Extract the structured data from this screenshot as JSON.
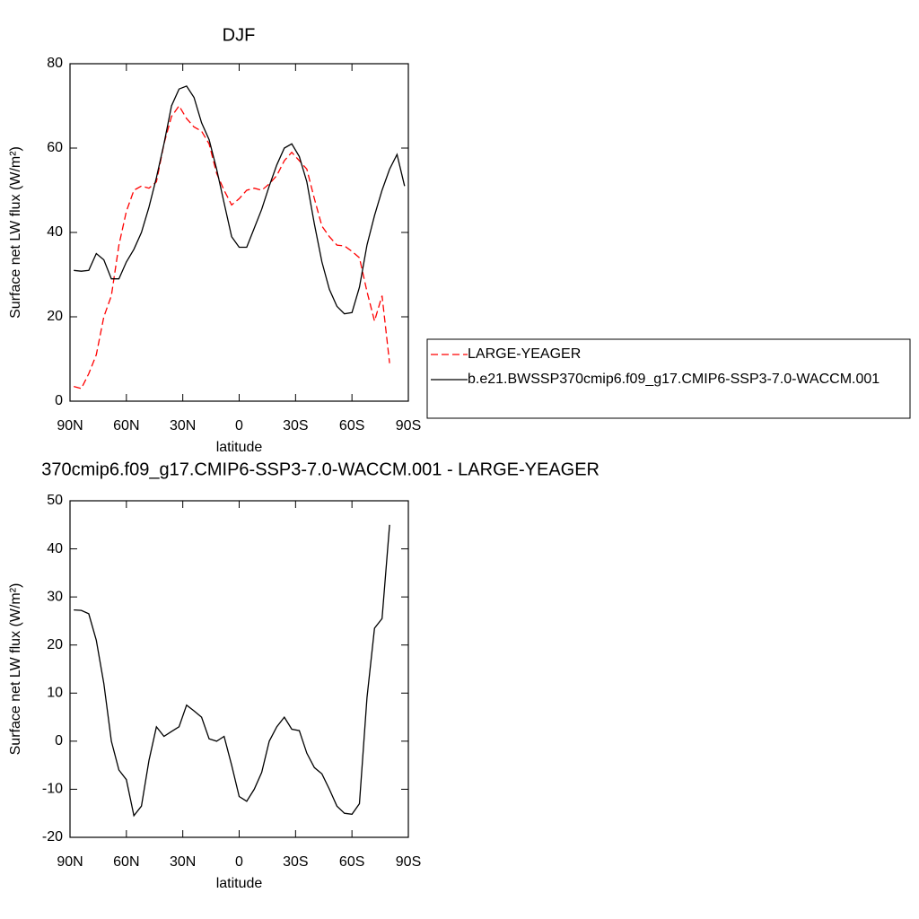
{
  "chart_data": [
    {
      "type": "line",
      "title": "DJF",
      "xlabel": "latitude",
      "ylabel": "Surface net LW flux (W/m²)",
      "x": [
        88,
        84,
        80,
        76,
        72,
        68,
        64,
        60,
        56,
        52,
        48,
        44,
        40,
        36,
        32,
        28,
        24,
        20,
        16,
        12,
        8,
        4,
        0,
        -4,
        -8,
        -12,
        -16,
        -20,
        -24,
        -28,
        -32,
        -36,
        -40,
        -44,
        -48,
        -52,
        -56,
        -60,
        -64,
        -68,
        -72,
        -76,
        -80,
        -84,
        -88
      ],
      "xlim": [
        90,
        -90
      ],
      "xticks": [
        {
          "value": 90,
          "label": "90N"
        },
        {
          "value": 60,
          "label": "60N"
        },
        {
          "value": 30,
          "label": "30N"
        },
        0,
        {
          "value": -30,
          "label": "30S"
        },
        {
          "value": -60,
          "label": "60S"
        },
        {
          "value": -90,
          "label": "90S"
        }
      ],
      "ylim": [
        0,
        80
      ],
      "yticks": [
        0,
        20,
        40,
        60,
        80
      ],
      "legend": "right",
      "series": [
        {
          "name": "LARGE-YEAGER",
          "color": "#ff0000",
          "style": "dashed",
          "values": [
            3.5,
            3,
            6.5,
            11,
            20,
            25,
            37,
            45,
            50,
            51,
            50.5,
            52,
            61,
            67.5,
            70,
            67,
            65,
            64,
            61,
            54,
            50,
            46.5,
            48,
            50,
            50.5,
            50,
            51.5,
            53.5,
            57,
            59,
            57,
            55,
            48,
            41.5,
            39,
            37,
            36.8,
            35.5,
            34,
            26,
            19,
            25,
            9,
            null,
            null
          ]
        },
        {
          "name": "b.e21.BWSSP370cmip6.f09_g17.CMIP6-SSP3-7.0-WACCM.001",
          "color": "#000000",
          "style": "solid",
          "values": [
            31,
            30.8,
            31,
            35,
            33.5,
            29,
            29,
            33,
            36,
            40,
            46,
            53,
            61,
            70,
            74,
            74.7,
            72,
            66,
            62,
            55,
            47,
            39,
            36.5,
            36.5,
            41,
            45.5,
            51,
            56,
            60,
            61,
            58,
            52,
            42,
            33,
            26.5,
            22.5,
            20.7,
            21,
            27,
            37,
            44,
            50,
            55,
            58.5,
            51
          ]
        }
      ]
    },
    {
      "type": "line",
      "title": "370cmip6.f09_g17.CMIP6-SSP3-7.0-WACCM.001 - LARGE-YEAGER",
      "xlabel": "latitude",
      "ylabel": "Surface net LW flux (W/m²)",
      "x": [
        88,
        84,
        80,
        76,
        72,
        68,
        64,
        60,
        56,
        52,
        48,
        44,
        40,
        36,
        32,
        28,
        24,
        20,
        16,
        12,
        8,
        4,
        0,
        -4,
        -8,
        -12,
        -16,
        -20,
        -24,
        -28,
        -32,
        -36,
        -40,
        -44,
        -48,
        -52,
        -56,
        -60,
        -64,
        -68,
        -72,
        -76,
        -80,
        -84,
        -88
      ],
      "xlim": [
        90,
        -90
      ],
      "xticks": [
        {
          "value": 90,
          "label": "90N"
        },
        {
          "value": 60,
          "label": "60N"
        },
        {
          "value": 30,
          "label": "30N"
        },
        0,
        {
          "value": -30,
          "label": "30S"
        },
        {
          "value": -60,
          "label": "60S"
        },
        {
          "value": -90,
          "label": "90S"
        }
      ],
      "ylim": [
        -20,
        50
      ],
      "yticks": [
        -20,
        -10,
        0,
        10,
        20,
        30,
        40,
        50
      ],
      "series": [
        {
          "color": "#000000",
          "style": "solid",
          "values": [
            27.3,
            27.2,
            26.5,
            21,
            12,
            0,
            -6,
            -8,
            -15.5,
            -13.5,
            -4,
            3,
            1,
            2,
            3,
            7.5,
            6.3,
            5,
            0.5,
            0,
            1,
            -5,
            -11.5,
            -12.5,
            -10,
            -6.5,
            0,
            3,
            5,
            2.5,
            2.2,
            -2.5,
            -5.5,
            -6.8,
            -10,
            -13.5,
            -15,
            -15.2,
            -13,
            9,
            23.5,
            25.5,
            45,
            null,
            null
          ]
        }
      ]
    }
  ]
}
